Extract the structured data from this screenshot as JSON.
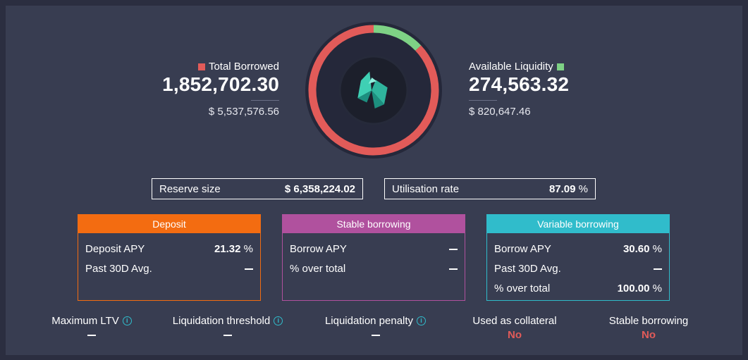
{
  "borrowed": {
    "label": "Total Borrowed",
    "amount": "1,852,702.30",
    "usd": "$ 5,537,576.56"
  },
  "liquidity": {
    "label": "Available Liquidity",
    "amount": "274,563.32",
    "usd": "$ 820,647.46"
  },
  "colors": {
    "borrowed": "#e25b59",
    "liquidity": "#7ed285",
    "deposit": "#f36c11",
    "stable": "#b0519e",
    "variable": "#30bccb"
  },
  "donut": {
    "borrowed_fraction": 0.8709,
    "liquidity_fraction": 0.1291,
    "token_icon": "token-logo-icon"
  },
  "stats": {
    "reserve": {
      "label": "Reserve size",
      "value": "$ 6,358,224.02"
    },
    "utilisation": {
      "label": "Utilisation rate",
      "value": "87.09",
      "unit": "%"
    }
  },
  "deposit": {
    "title": "Deposit",
    "rows": [
      {
        "label": "Deposit APY",
        "value": "21.32",
        "unit": "%"
      },
      {
        "label": "Past 30D Avg.",
        "value": "—"
      }
    ]
  },
  "stable": {
    "title": "Stable borrowing",
    "rows": [
      {
        "label": "Borrow APY",
        "value": "—"
      },
      {
        "label": "% over total",
        "value": "—"
      }
    ]
  },
  "variable": {
    "title": "Variable borrowing",
    "rows": [
      {
        "label": "Borrow APY",
        "value": "30.60",
        "unit": "%"
      },
      {
        "label": "Past 30D Avg.",
        "value": "—"
      },
      {
        "label": "% over total",
        "value": "100.00",
        "unit": "%"
      }
    ]
  },
  "metrics": [
    {
      "label": "Maximum LTV",
      "value": "—",
      "info": true
    },
    {
      "label": "Liquidation threshold",
      "value": "—",
      "info": true
    },
    {
      "label": "Liquidation penalty",
      "value": "—",
      "info": true
    },
    {
      "label": "Used as collateral",
      "value": "No"
    },
    {
      "label": "Stable borrowing",
      "value": "No"
    }
  ]
}
